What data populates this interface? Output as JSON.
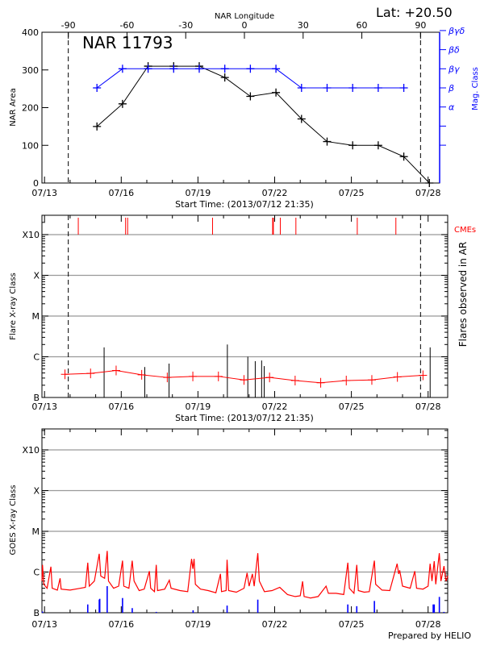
{
  "colors": {
    "area": "#000000",
    "mag": "#0000ff",
    "cme": "#ff0000",
    "flare_bg": "#ff0000",
    "flare": "#000000",
    "goes": "#ff0000",
    "goes_events": "#0000ff",
    "grid": "#999999"
  },
  "chart_data": [
    {
      "type": "line",
      "title": "NAR 11793",
      "latitude_label": "Lat: +20.50",
      "top_axis_label": "NAR Longitude",
      "top_axis_ticks": [
        -90,
        -60,
        -30,
        0,
        30,
        60,
        90
      ],
      "xlabel": "Start Time: (2013/07/12 21:35)",
      "x_tick_labels": [
        "07/13",
        "07/16",
        "07/19",
        "07/22",
        "07/25",
        "07/28"
      ],
      "ylabel": "NAR Area",
      "ylim": [
        0,
        400
      ],
      "y_ticks": [
        0,
        100,
        200,
        300,
        400
      ],
      "y2label": "Mag. Class",
      "y2_tick_labels": [
        "",
        "",
        "α",
        "β",
        "βγ",
        "βδ",
        "βγδ"
      ],
      "limb_longitudes": [
        -90,
        90
      ],
      "series": [
        {
          "axis": "left",
          "x": [
            "07/15",
            "07/16",
            "07/17",
            "07/18",
            "07/19",
            "07/20",
            "07/21",
            "07/22",
            "07/23",
            "07/24",
            "07/25",
            "07/26",
            "07/27",
            "07/28"
          ],
          "values": [
            150,
            210,
            310,
            310,
            310,
            280,
            230,
            240,
            170,
            110,
            100,
            100,
            70,
            0
          ]
        },
        {
          "axis": "right",
          "x": [
            "07/15",
            "07/16",
            "07/17",
            "07/18",
            "07/19",
            "07/20",
            "07/21",
            "07/22",
            "07/23",
            "07/24",
            "07/25",
            "07/26",
            "07/27"
          ],
          "values": [
            "β",
            "βγ",
            "βγ",
            "βγ",
            "βγ",
            "βγ",
            "βγ",
            "βγ",
            "β",
            "β",
            "β",
            "β",
            "β"
          ]
        }
      ]
    },
    {
      "type": "bar",
      "xlabel": "Start Time: (2013/07/12 21:35)",
      "x_tick_labels": [
        "07/13",
        "07/16",
        "07/19",
        "07/22",
        "07/25",
        "07/28"
      ],
      "ylabel": "Flare X-ray Class",
      "y2label": "Flares observed in AR",
      "y_scale": "log",
      "y_tick_labels": [
        "B",
        "C",
        "M",
        "X",
        "X10"
      ],
      "cme_label": "CMEs",
      "cme_times_day_of_july": [
        14.32,
        16.17,
        16.25,
        19.57,
        21.92,
        21.95,
        22.22,
        22.83,
        25.23,
        26.74
      ],
      "flares": {
        "day_of_july": [
          15.33,
          16.92,
          17.87,
          20.15,
          20.95,
          21.24,
          21.49,
          21.59,
          28.08
        ],
        "flux_wm2": [
          1.7e-06,
          5.6e-07,
          6.8e-07,
          2e-06,
          1e-06,
          7.8e-07,
          8.1e-07,
          5.9e-07,
          1.7e-06
        ]
      },
      "background": {
        "day_of_july": [
          13.8,
          14.8,
          15.8,
          16.8,
          17.8,
          18.8,
          19.8,
          20.8,
          21.8,
          22.8,
          23.8,
          24.8,
          25.8,
          26.8,
          27.8
        ],
        "flux_wm2": [
          3.7e-07,
          3.9e-07,
          4.6e-07,
          3.6e-07,
          3.1e-07,
          3.3e-07,
          3.3e-07,
          2.7e-07,
          3.1e-07,
          2.6e-07,
          2.3e-07,
          2.6e-07,
          2.7e-07,
          3.2e-07,
          3.5e-07
        ]
      }
    },
    {
      "type": "line",
      "x_tick_labels": [
        "07/13",
        "07/16",
        "07/19",
        "07/22",
        "07/25",
        "07/28"
      ],
      "ylabel": "GOES X-ray Class",
      "y_scale": "log",
      "y_tick_labels": [
        "B",
        "C",
        "M",
        "X",
        "X10"
      ],
      "goes_flux": [
        [
          12.9,
          6e-07
        ],
        [
          12.92,
          1.5e-06
        ],
        [
          12.97,
          5e-07
        ],
        [
          13.1,
          4e-07
        ],
        [
          13.25,
          1.35e-06
        ],
        [
          13.3,
          4e-07
        ],
        [
          13.5,
          3.6e-07
        ],
        [
          13.61,
          7e-07
        ],
        [
          13.65,
          3.8e-07
        ],
        [
          14.0,
          3.6e-07
        ],
        [
          14.3,
          3.9e-07
        ],
        [
          14.6,
          4.2e-07
        ],
        [
          14.69,
          1.7e-06
        ],
        [
          14.75,
          4.5e-07
        ],
        [
          14.95,
          6e-07
        ],
        [
          15.14,
          2.8e-06
        ],
        [
          15.2,
          8e-07
        ],
        [
          15.35,
          7e-07
        ],
        [
          15.45,
          3.3e-06
        ],
        [
          15.5,
          6e-07
        ],
        [
          15.7,
          4e-07
        ],
        [
          15.9,
          4.5e-07
        ],
        [
          16.05,
          1.9e-06
        ],
        [
          16.1,
          4.5e-07
        ],
        [
          16.3,
          4e-07
        ],
        [
          16.43,
          1.9e-06
        ],
        [
          16.5,
          6e-07
        ],
        [
          16.7,
          3.5e-07
        ],
        [
          16.9,
          3.8e-07
        ],
        [
          17.1,
          1.05e-06
        ],
        [
          17.15,
          4e-07
        ],
        [
          17.3,
          3.3e-07
        ],
        [
          17.37,
          1.5e-06
        ],
        [
          17.42,
          3.5e-07
        ],
        [
          17.7,
          3.8e-07
        ],
        [
          17.88,
          6.3e-07
        ],
        [
          17.95,
          4e-07
        ],
        [
          18.3,
          3.5e-07
        ],
        [
          18.6,
          3.3e-07
        ],
        [
          18.75,
          2.1e-06
        ],
        [
          18.8,
          1.2e-06
        ],
        [
          18.85,
          2.1e-06
        ],
        [
          18.9,
          5e-07
        ],
        [
          19.1,
          3.8e-07
        ],
        [
          19.4,
          3.5e-07
        ],
        [
          19.7,
          3.1e-07
        ],
        [
          19.88,
          9e-07
        ],
        [
          19.92,
          3.3e-07
        ],
        [
          20.1,
          3.5e-07
        ],
        [
          20.14,
          2e-06
        ],
        [
          20.2,
          3.5e-07
        ],
        [
          20.5,
          3.2e-07
        ],
        [
          20.8,
          4e-07
        ],
        [
          20.92,
          9.5e-07
        ],
        [
          21.0,
          4.5e-07
        ],
        [
          21.13,
          9e-07
        ],
        [
          21.2,
          4.5e-07
        ],
        [
          21.34,
          2.9e-06
        ],
        [
          21.4,
          6e-07
        ],
        [
          21.6,
          3.3e-07
        ],
        [
          21.9,
          3.5e-07
        ],
        [
          22.2,
          4.2e-07
        ],
        [
          22.5,
          2.8e-07
        ],
        [
          22.8,
          2.5e-07
        ],
        [
          23.0,
          2.6e-07
        ],
        [
          23.09,
          5.9e-07
        ],
        [
          23.15,
          2.5e-07
        ],
        [
          23.4,
          2.3e-07
        ],
        [
          23.7,
          2.5e-07
        ],
        [
          24.01,
          4.5e-07
        ],
        [
          24.1,
          3e-07
        ],
        [
          24.4,
          3e-07
        ],
        [
          24.7,
          2.8e-07
        ],
        [
          24.86,
          1.7e-06
        ],
        [
          24.92,
          4e-07
        ],
        [
          25.1,
          3e-07
        ],
        [
          25.21,
          1.5e-06
        ],
        [
          25.27,
          3.5e-07
        ],
        [
          25.5,
          3.2e-07
        ],
        [
          25.7,
          3.3e-07
        ],
        [
          25.9,
          1.9e-06
        ],
        [
          25.95,
          5e-07
        ],
        [
          26.2,
          3.6e-07
        ],
        [
          26.5,
          3.5e-07
        ],
        [
          26.79,
          1.6e-06
        ],
        [
          26.85,
          9e-07
        ],
        [
          26.89,
          1.1e-06
        ],
        [
          27.0,
          4.5e-07
        ],
        [
          27.3,
          4e-07
        ],
        [
          27.48,
          1.05e-06
        ],
        [
          27.55,
          4e-07
        ],
        [
          27.8,
          3.8e-07
        ],
        [
          28.0,
          4.5e-07
        ],
        [
          28.08,
          1.6e-06
        ],
        [
          28.15,
          6e-07
        ],
        [
          28.24,
          1.85e-06
        ],
        [
          28.3,
          5e-07
        ],
        [
          28.44,
          2.9e-06
        ],
        [
          28.5,
          6e-07
        ],
        [
          28.62,
          1.4e-06
        ],
        [
          28.7,
          6e-07
        ],
        [
          28.77,
          8e-07
        ]
      ],
      "goes_events": {
        "day_of_july": [
          12.92,
          14.69,
          15.14,
          15.16,
          15.45,
          16.05,
          16.43,
          17.37,
          18.81,
          20.14,
          21.34,
          24.86,
          25.21,
          25.9,
          28.2,
          28.24,
          28.44,
          28.62
        ],
        "flux_wm2": [
          1.07e-07,
          1.6e-07,
          2.1e-07,
          2.2e-07,
          4.5e-07,
          2.3e-07,
          1.3e-07,
          1.05e-07,
          1.15e-07,
          1.5e-07,
          2.1e-07,
          1.6e-07,
          1.45e-07,
          1.95e-07,
          1.6e-07,
          1.6e-07,
          2.45e-07,
          1.05e-07
        ]
      }
    }
  ],
  "footer": {
    "credit": "Prepared by HELIO"
  }
}
